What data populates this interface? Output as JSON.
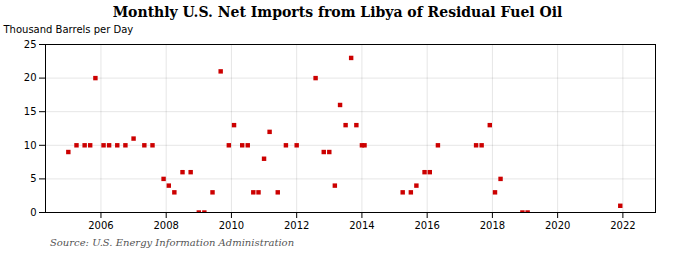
{
  "chart_data": {
    "type": "scatter",
    "title": "Monthly U.S. Net Imports from Libya of Residual Fuel Oil",
    "ylabel": "Thousand Barrels per Day",
    "source": "Source: U.S. Energy Information Administration",
    "color": "#cc0000",
    "marker": "square",
    "grid": true,
    "xlim": [
      2004.3,
      2023.0
    ],
    "ylim": [
      0,
      25
    ],
    "xticks": [
      2006,
      2008,
      2010,
      2012,
      2014,
      2016,
      2018,
      2020,
      2022
    ],
    "yticks": [
      0,
      5,
      10,
      15,
      20,
      25
    ],
    "x": [
      2005.0,
      2005.25,
      2005.5,
      2005.67,
      2005.83,
      2006.08,
      2006.25,
      2006.5,
      2006.75,
      2007.0,
      2007.33,
      2007.58,
      2007.92,
      2008.08,
      2008.25,
      2008.5,
      2008.75,
      2009.0,
      2009.17,
      2009.42,
      2009.67,
      2009.92,
      2010.08,
      2010.33,
      2010.5,
      2010.67,
      2010.83,
      2011.0,
      2011.17,
      2011.42,
      2011.67,
      2012.0,
      2012.58,
      2012.83,
      2013.0,
      2013.17,
      2013.33,
      2013.5,
      2013.67,
      2013.83,
      2014.0,
      2014.08,
      2015.25,
      2015.5,
      2015.67,
      2015.92,
      2016.08,
      2016.33,
      2017.5,
      2017.67,
      2017.92,
      2018.08,
      2018.25,
      2018.92,
      2019.08,
      2021.92
    ],
    "values": [
      9,
      10,
      10,
      10,
      20,
      10,
      10,
      10,
      10,
      11,
      10,
      10,
      5,
      4,
      3,
      6,
      6,
      0,
      0,
      3,
      21,
      10,
      13,
      10,
      10,
      3,
      3,
      8,
      12,
      3,
      10,
      10,
      20,
      9,
      9,
      4,
      16,
      13,
      23,
      13,
      10,
      10,
      3,
      3,
      4,
      6,
      6,
      10,
      10,
      10,
      13,
      3,
      5,
      0,
      0,
      1
    ]
  }
}
